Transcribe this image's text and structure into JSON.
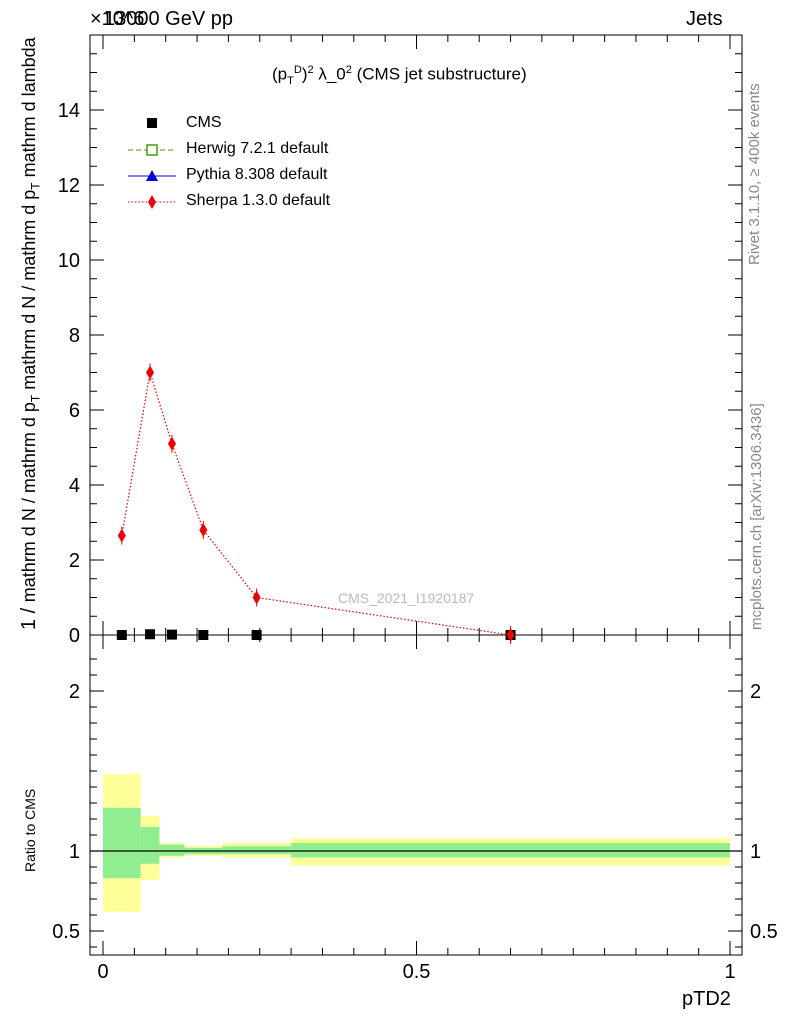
{
  "header": {
    "exponent": "×10^6",
    "energy": "13000 GeV pp",
    "process": "Jets"
  },
  "side_labels": {
    "rivet": "Rivet 3.1.10, ≥ 400k events",
    "mcplots": "mcplots.cern.ch [arXiv:1306.3436]"
  },
  "analysis_mark": "CMS_2021_I1920187",
  "chart_data": [
    {
      "type": "line",
      "panel": "main",
      "title": "(p_T^D)^2 λ_0^2 (CMS jet substructure)",
      "ylabel": "1 / mathrm d N / mathrm d p_T mathrm d N / mathrm d p_T mathrm d lambda",
      "xlabel": "pTD2",
      "xlim": [
        0,
        1
      ],
      "ylim": [
        0,
        16
      ],
      "y_multiplier": "1e6",
      "yticks": [
        0,
        2,
        4,
        6,
        8,
        10,
        12,
        14
      ],
      "legend_position": "top-left",
      "series": [
        {
          "name": "CMS",
          "color": "#000000",
          "marker": "square",
          "x": [
            0.03,
            0.075,
            0.11,
            0.16,
            0.245,
            0.65
          ],
          "y": [
            0.0,
            0.02,
            0.01,
            0.0,
            0.0,
            0.0
          ]
        },
        {
          "name": "Herwig 7.2.1 default",
          "color": "#4a9a00",
          "marker": "open-square",
          "line": "dashed",
          "x": [],
          "y": []
        },
        {
          "name": "Pythia 8.308 default",
          "color": "#0000cc",
          "marker": "triangle",
          "line": "solid",
          "x": [],
          "y": []
        },
        {
          "name": "Sherpa 1.3.0 default",
          "color": "#ee0000",
          "marker": "diamond",
          "line": "dotted",
          "x": [
            0.03,
            0.075,
            0.11,
            0.16,
            0.245,
            0.65
          ],
          "y": [
            2.65,
            7.0,
            5.1,
            2.8,
            1.0,
            0.0
          ]
        }
      ]
    },
    {
      "type": "area",
      "panel": "ratio",
      "xlabel": "pTD2",
      "ylabel": "Ratio to CMS",
      "xlim": [
        0,
        1
      ],
      "ylim": [
        0.35,
        2.35
      ],
      "xticks": [
        0,
        0.5,
        1
      ],
      "yticks": [
        0.5,
        1,
        2
      ],
      "bins": [
        [
          0.0,
          0.06
        ],
        [
          0.06,
          0.09
        ],
        [
          0.09,
          0.13
        ],
        [
          0.13,
          0.19
        ],
        [
          0.19,
          0.3
        ],
        [
          0.3,
          1.0
        ]
      ],
      "inner_band": {
        "color": "#90ee90",
        "lower": [
          0.83,
          0.92,
          0.97,
          0.98,
          0.98,
          0.96
        ],
        "upper": [
          1.27,
          1.15,
          1.04,
          1.02,
          1.03,
          1.05
        ]
      },
      "outer_band": {
        "color": "#ffff99",
        "lower": [
          0.62,
          0.82,
          0.96,
          0.97,
          0.96,
          0.91
        ],
        "upper": [
          1.48,
          1.22,
          1.05,
          1.03,
          1.05,
          1.08
        ]
      }
    }
  ]
}
